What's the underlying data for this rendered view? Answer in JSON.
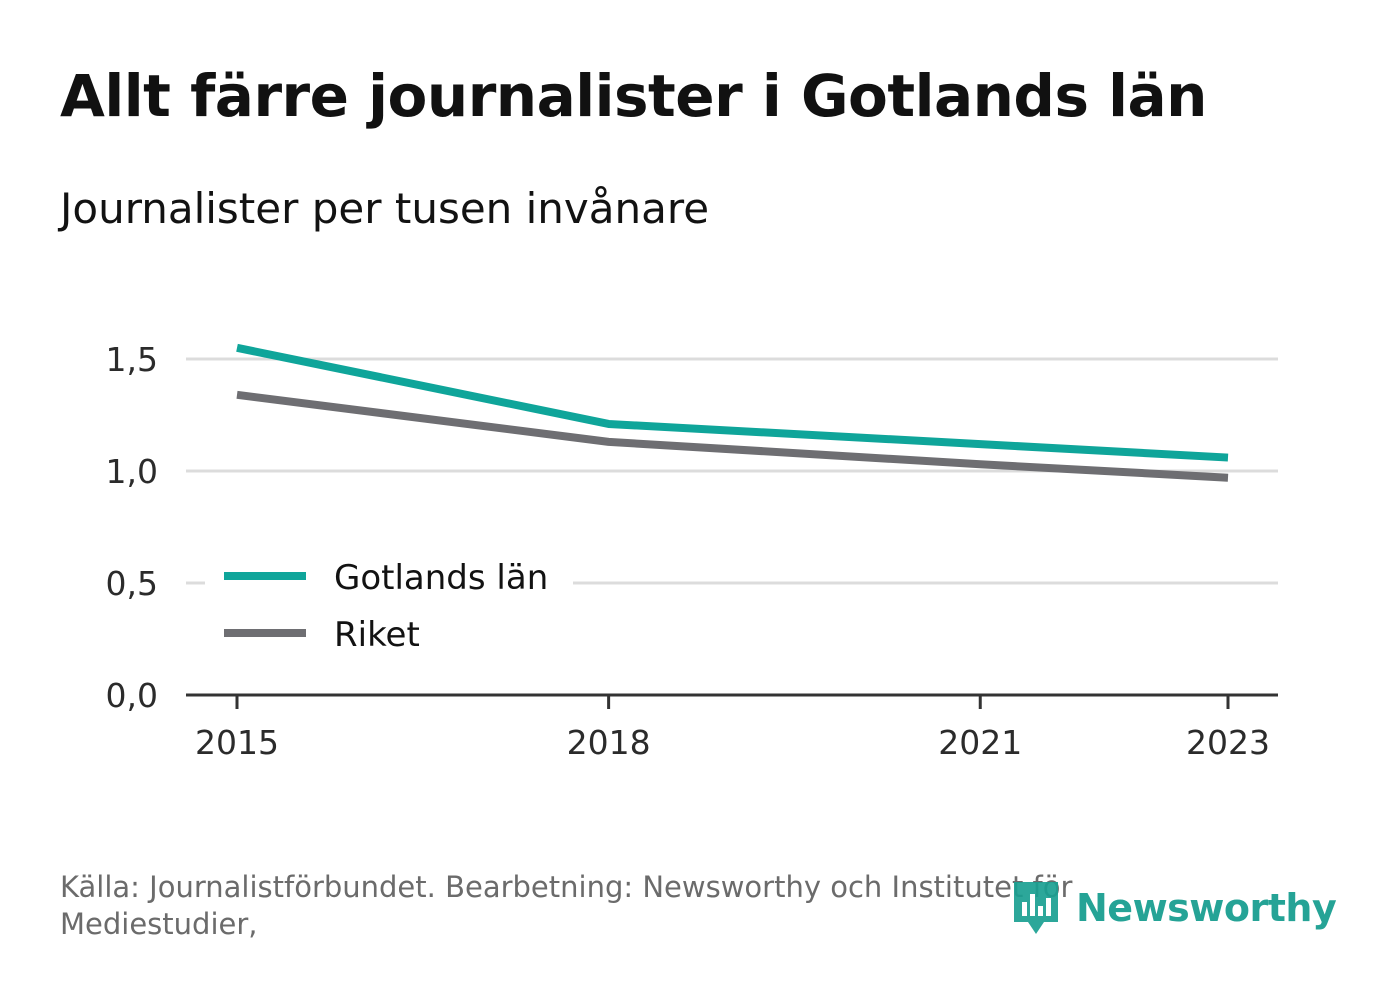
{
  "title": "Allt färre journalister i Gotlands län",
  "subtitle": "Journalister per tusen invånare",
  "source": "Källa: Journalistförbundet. Bearbetning: Newsworthy och Institutet för Mediestudier,",
  "brand": {
    "name": "Newsworthy",
    "color": "#1a9f91",
    "icon": "newsworthy-logo-icon"
  },
  "colors": {
    "gotland": "#0fa59a",
    "riket": "#6e6e72",
    "grid": "#dcdcdc",
    "axis": "#333333"
  },
  "chart_data": {
    "type": "line",
    "x": [
      2015,
      2018,
      2021,
      2023
    ],
    "xticks": [
      "2015",
      "2018",
      "2021",
      "2023"
    ],
    "yticks": [
      "0,0",
      "0,5",
      "1,0",
      "1,5"
    ],
    "ylim": [
      0,
      1.5
    ],
    "grid": true,
    "legend_position": "bottom-left",
    "series": [
      {
        "name": "Gotlands län",
        "values": [
          1.55,
          1.21,
          1.12,
          1.06
        ]
      },
      {
        "name": "Riket",
        "values": [
          1.34,
          1.13,
          1.03,
          0.97
        ]
      }
    ]
  }
}
